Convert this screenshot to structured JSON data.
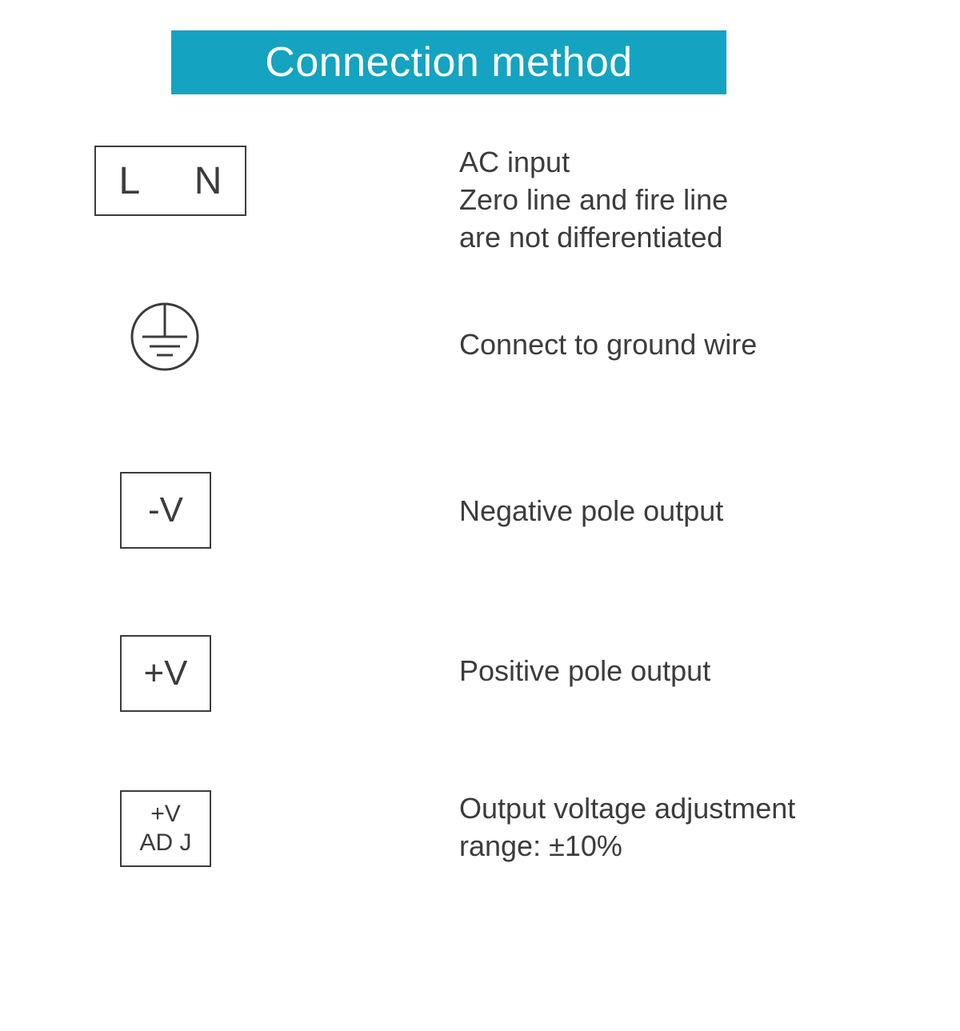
{
  "header": {
    "title": "Connection method",
    "bg_color": "#14a3c0",
    "text_color": "#ffffff",
    "fontsize": 52
  },
  "rows": [
    {
      "symbol_type": "ln_box",
      "symbol_text": "L  N",
      "description": "AC input\nZero line and fire line\nare not differentiated"
    },
    {
      "symbol_type": "ground_icon",
      "description": "Connect to ground wire"
    },
    {
      "symbol_type": "neg_box",
      "symbol_text": "-V",
      "description": "Negative pole output"
    },
    {
      "symbol_type": "pos_box",
      "symbol_text": "+V",
      "description": "Positive pole output"
    },
    {
      "symbol_type": "adj_box",
      "symbol_line1": "+V",
      "symbol_line2": "AD J",
      "description": "Output voltage adjustment\nrange: ±10%"
    }
  ],
  "styling": {
    "background_color": "#ffffff",
    "text_color": "#3c3c3c",
    "border_color": "#3c3c3c",
    "border_width": 2,
    "desc_fontsize": 36,
    "symbol_fontsize_large": 48,
    "symbol_fontsize_medium": 44,
    "symbol_fontsize_small": 30,
    "ground_stroke_width": 3
  }
}
